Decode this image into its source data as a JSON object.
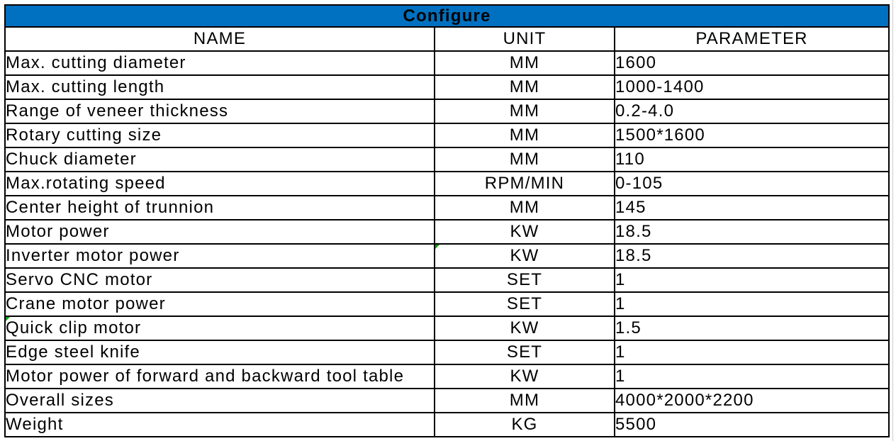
{
  "table": {
    "title": "Configure",
    "columns": [
      "NAME",
      "UNIT",
      "PARAMETER"
    ],
    "rows": [
      {
        "name": "Max. cutting diameter",
        "unit": "MM",
        "parameter": "1600"
      },
      {
        "name": "Max. cutting length",
        "unit": "MM",
        "parameter": "1000-1400"
      },
      {
        "name": "Range of veneer thickness",
        "unit": "MM",
        "parameter": "0.2-4.0"
      },
      {
        "name": "Rotary cutting size",
        "unit": "MM",
        "parameter": "1500*1600"
      },
      {
        "name": "Chuck diameter",
        "unit": "MM",
        "parameter": "110"
      },
      {
        "name": "Max.rotating speed",
        "unit": "RPM/MIN",
        "parameter": "0-105"
      },
      {
        "name": "Center height of trunnion",
        "unit": "MM",
        "parameter": "145"
      },
      {
        "name": "Motor power",
        "unit": "KW",
        "parameter": "18.5"
      },
      {
        "name": "Inverter motor power",
        "unit": "KW",
        "parameter": "18.5"
      },
      {
        "name": "Servo CNC motor",
        "unit": "SET",
        "parameter": "1"
      },
      {
        "name": "Crane motor power",
        "unit": "SET",
        "parameter": "1"
      },
      {
        "name": "Quick clip motor",
        "unit": "KW",
        "parameter": "1.5"
      },
      {
        "name": "Edge steel knife",
        "unit": "SET",
        "parameter": "1"
      },
      {
        "name": "Motor power of forward and backward tool table",
        "unit": "KW",
        "parameter": "1"
      },
      {
        "name": "Overall sizes",
        "unit": "MM",
        "parameter": "4000*2000*2200"
      },
      {
        "name": "Weight",
        "unit": "KG",
        "parameter": "5500"
      }
    ],
    "error_markers": [
      {
        "row": 8,
        "column": "unit"
      },
      {
        "row": 11,
        "column": "name"
      }
    ]
  },
  "colors": {
    "title_bg": "#0070C0",
    "border": "#000000",
    "error_marker": "#0E9C0E",
    "gridline": "#CDCDCD"
  }
}
